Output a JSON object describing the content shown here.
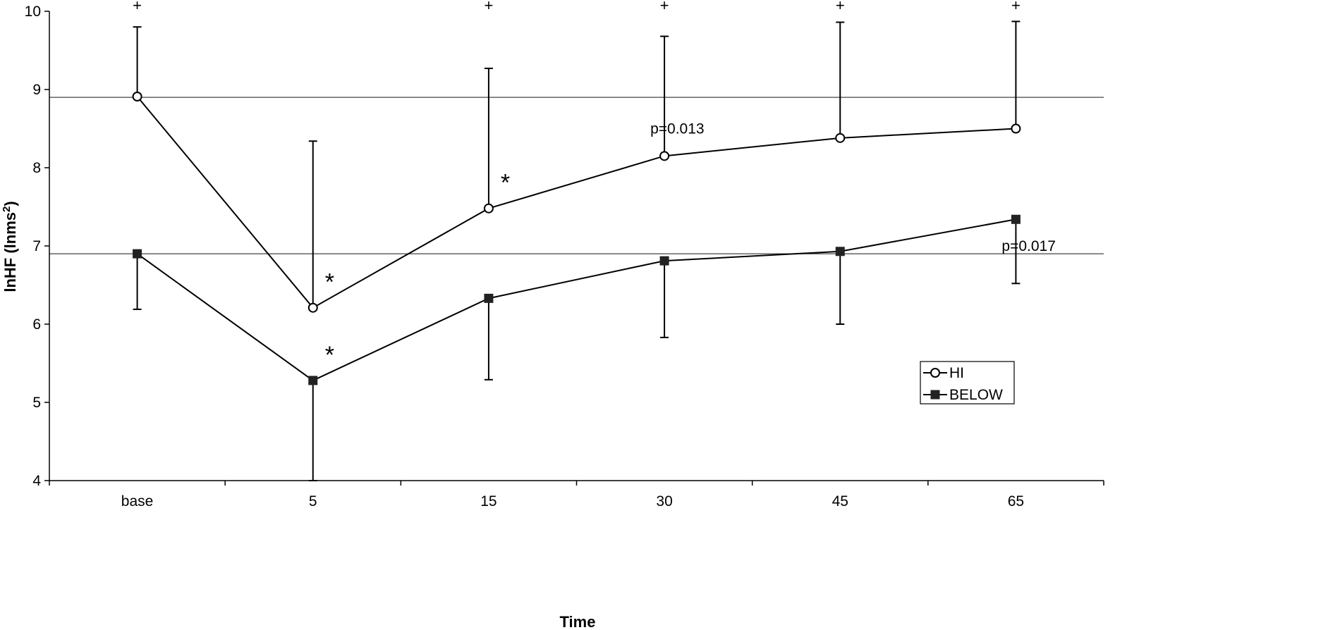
{
  "chart_data": {
    "type": "line",
    "xlabel": "Time",
    "ylabel": "lnHF (lnms",
    "ylabel_sup": "2",
    "ylabel_close": ")",
    "categories": [
      "base",
      "5",
      "15",
      "30",
      "45",
      "65"
    ],
    "ylim": [
      4,
      10
    ],
    "yticks": [
      "4",
      "5",
      "6",
      "7",
      "8",
      "9",
      "10"
    ],
    "grid": false,
    "reference_lines": [
      8.9,
      6.9
    ],
    "legend_position": "bottom-right",
    "series": [
      {
        "name": "HI",
        "marker": "open-circle",
        "values": [
          8.91,
          6.21,
          7.48,
          8.15,
          8.38,
          8.5
        ],
        "error_upper": [
          9.8,
          8.34,
          9.27,
          9.68,
          9.86,
          9.87
        ]
      },
      {
        "name": "BELOW",
        "marker": "filled-square",
        "values": [
          6.9,
          5.28,
          6.33,
          6.81,
          6.93,
          7.34
        ],
        "error_lower": [
          6.19,
          4.0,
          5.29,
          5.83,
          6.0,
          6.52
        ]
      }
    ],
    "annotations": [
      {
        "text": "p=0.013",
        "category": "30",
        "y": 8.5
      },
      {
        "text": "p=0.017",
        "category": "65",
        "y": 7.0
      }
    ],
    "significance_marks": [
      {
        "symbol": "*",
        "category": "5",
        "series": "HI"
      },
      {
        "symbol": "*",
        "category": "15",
        "series": "HI"
      },
      {
        "symbol": "*",
        "category": "5",
        "series": "BELOW"
      }
    ],
    "plus_marks": [
      {
        "symbol": "+",
        "category": "base"
      },
      {
        "symbol": "+",
        "category": "15"
      },
      {
        "symbol": "+",
        "category": "30"
      },
      {
        "symbol": "+",
        "category": "45"
      },
      {
        "symbol": "+",
        "category": "65"
      }
    ]
  }
}
